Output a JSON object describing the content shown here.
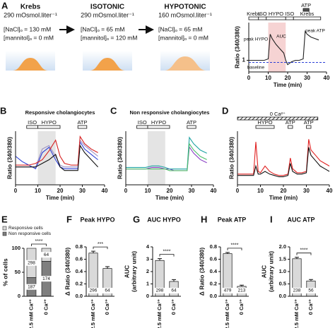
{
  "panel_a": {
    "label": "A",
    "solutions": [
      {
        "name": "Krebs",
        "osmolarity": "290 mOsmol.liter⁻¹",
        "nacl": "[NaCl]ₒ = 130 mM",
        "mannitol": "[mannitol]ₒ = 0 mM"
      },
      {
        "name": "ISOTONIC",
        "osmolarity": "290 mOsmol.liter⁻¹",
        "nacl": "[NaCl]ₒ = 65 mM",
        "mannitol": "[mannitol]ₒ = 120 mM"
      },
      {
        "name": "HYPOTONIC",
        "osmolarity": "160 mOsmol.liter⁻¹",
        "nacl": "[NaCl]ₒ = 65 mM",
        "mannitol": "[mannitol]ₒ = 0 mM"
      }
    ]
  },
  "chart_data": [
    {
      "type": "line",
      "ylabel": "Ratio (340/380)",
      "xlabel": "Time (min)",
      "x": [
        0,
        2,
        4,
        6,
        8,
        10,
        11,
        12,
        14,
        16,
        18,
        19,
        20,
        22,
        24,
        26,
        28,
        29,
        30,
        32,
        34,
        36
      ],
      "series": [
        {
          "color": "#222222",
          "values": [
            1.0,
            1.0,
            1.0,
            1.0,
            1.0,
            1.05,
            1.9,
            1.75,
            1.55,
            1.4,
            1.25,
            1.0,
            0.85,
            0.95,
            1.0,
            1.0,
            1.05,
            2.0,
            1.9,
            1.8,
            1.75,
            1.7
          ]
        }
      ],
      "xlim": [
        0,
        40
      ],
      "xticks": [
        0,
        10,
        20,
        30,
        40
      ],
      "ylim": [
        0.6,
        2.3
      ],
      "yticks": [
        1
      ],
      "shade": [
        10,
        19
      ],
      "periods": [
        {
          "label": "Krebs",
          "start": 0,
          "end": 5
        },
        {
          "label": "ISO",
          "start": 5,
          "end": 9
        },
        {
          "label": "HYPO",
          "start": 9,
          "end": 19
        },
        {
          "label": "ISO",
          "start": 19,
          "end": 23
        },
        {
          "label": "Krebs",
          "start": 23,
          "end": 37
        },
        {
          "label": "ATP",
          "start": 28,
          "end": 31
        }
      ],
      "annotations": [
        "peak HYPO",
        "AUC",
        "peak ATP",
        "baseline"
      ]
    },
    {
      "panel": "B",
      "type": "line",
      "title": "Responsive cholangiocytes",
      "ylabel": "Ratio (340/380)",
      "xlabel": "Time (min)",
      "x": [
        0,
        3,
        6,
        9,
        12,
        15,
        18,
        20,
        22,
        25,
        28,
        29,
        31,
        34,
        37
      ],
      "series": [
        {
          "color": "#2b3fd6",
          "values": [
            1.3,
            1.15,
            1.05,
            0.95,
            1.4,
            1.55,
            1.2,
            1.0,
            0.95,
            0.95,
            0.95,
            1.7,
            1.5,
            1.35,
            1.2
          ]
        },
        {
          "color": "#9a8fc4",
          "values": [
            1.0,
            1.0,
            1.0,
            1.0,
            1.5,
            1.6,
            1.3,
            1.05,
            1.0,
            1.0,
            1.0,
            1.75,
            1.6,
            1.45,
            1.3
          ]
        },
        {
          "color": "#d62020",
          "values": [
            1.05,
            1.05,
            1.05,
            1.1,
            1.2,
            1.45,
            1.75,
            1.3,
            1.1,
            1.05,
            1.05,
            1.85,
            1.65,
            1.5,
            1.4
          ]
        },
        {
          "color": "#111111",
          "values": [
            1.0,
            1.0,
            1.0,
            1.0,
            1.1,
            1.2,
            1.35,
            1.0,
            0.9,
            0.9,
            0.9,
            1.6,
            1.4,
            1.2,
            1.0
          ]
        }
      ],
      "xlim": [
        0,
        40
      ],
      "xticks": [
        0,
        10,
        20,
        30,
        40
      ],
      "ylim": [
        0.5,
        2.0
      ],
      "shade": [
        10,
        18
      ],
      "periods": [
        {
          "label": "ISO",
          "start": 5,
          "end": 10
        },
        {
          "label": "HYPO",
          "start": 10,
          "end": 20
        },
        {
          "label": "ATP",
          "start": 28,
          "end": 32
        }
      ]
    },
    {
      "panel": "C",
      "type": "line",
      "title": "Non responsive cholangiocytes",
      "ylabel": "Ratio (340/380)",
      "xlabel": "Time (min)",
      "x": [
        0,
        3,
        6,
        9,
        12,
        15,
        18,
        20,
        22,
        25,
        28,
        29,
        31,
        34,
        37
      ],
      "series": [
        {
          "color": "#8a3fc4",
          "values": [
            1.0,
            1.0,
            1.0,
            1.0,
            1.05,
            1.05,
            1.0,
            1.0,
            0.95,
            0.95,
            0.95,
            1.7,
            1.5,
            1.3,
            1.2
          ]
        },
        {
          "color": "#1fa3a3",
          "values": [
            1.05,
            1.05,
            1.05,
            1.05,
            1.1,
            1.1,
            1.05,
            1.0,
            1.0,
            1.0,
            1.0,
            2.0,
            1.8,
            1.6,
            1.5
          ]
        },
        {
          "color": "#4fbf6a",
          "values": [
            1.0,
            1.0,
            1.0,
            1.0,
            1.0,
            1.0,
            1.0,
            0.95,
            0.95,
            0.95,
            0.95,
            1.8,
            1.6,
            1.4,
            1.3
          ]
        }
      ],
      "xlim": [
        0,
        40
      ],
      "xticks": [
        0,
        10,
        20,
        30,
        40
      ],
      "ylim": [
        0.5,
        2.2
      ],
      "shade": [
        10,
        18
      ],
      "periods": [
        {
          "label": "ISO",
          "start": 5,
          "end": 10
        },
        {
          "label": "HYPO",
          "start": 10,
          "end": 20
        },
        {
          "label": "ATP",
          "start": 28,
          "end": 32
        }
      ]
    },
    {
      "panel": "D",
      "type": "line",
      "ylabel": "Ratio (340/380)",
      "xlabel": "Time (min)",
      "x": [
        0,
        2,
        4,
        5,
        6,
        7,
        8,
        9,
        10,
        12,
        14,
        16,
        18,
        20,
        22,
        23,
        24,
        26,
        28,
        30,
        31,
        32,
        34,
        36,
        38,
        40
      ],
      "series": [
        {
          "color": "#e02020",
          "values": [
            1.0,
            1.0,
            1.0,
            1.0,
            1.0,
            1.0,
            2.2,
            1.1,
            1.05,
            1.3,
            1.1,
            1.0,
            0.95,
            0.95,
            1.0,
            1.6,
            1.2,
            1.05,
            1.05,
            1.1,
            2.3,
            1.9,
            1.7,
            1.5,
            1.4,
            1.3
          ]
        },
        {
          "color": "#111111",
          "values": [
            0.95,
            0.95,
            0.95,
            0.95,
            0.95,
            0.95,
            1.3,
            1.0,
            1.0,
            1.1,
            1.0,
            0.95,
            0.9,
            0.9,
            0.95,
            1.4,
            1.1,
            1.0,
            1.0,
            1.05,
            2.0,
            1.7,
            1.5,
            1.3,
            1.2,
            1.1
          ]
        }
      ],
      "xlim": [
        0,
        40
      ],
      "xticks": [
        0,
        10,
        20,
        30,
        40
      ],
      "ylim": [
        0.6,
        2.6
      ],
      "periods": [
        {
          "label": "HYPO",
          "start": 8,
          "end": 16
        },
        {
          "label": "ATP",
          "start": 22,
          "end": 24
        },
        {
          "label": "0 Ca²⁺",
          "start": 0,
          "end": 35,
          "hatched": true
        },
        {
          "label": "ATP",
          "start": 30,
          "end": 32
        }
      ]
    },
    {
      "panel": "E",
      "type": "stacked_bar",
      "categories": [
        "2.5 mM Ca²⁺",
        "0 Ca²⁺"
      ],
      "series": [
        {
          "name": "Responsive cells",
          "color": "#d9d9d9",
          "values": [
            61,
            27
          ],
          "n": [
            298,
            64
          ]
        },
        {
          "name": "Non responsive cells",
          "color": "#7f7f7f",
          "values": [
            39,
            73
          ],
          "n": [
            187,
            174
          ]
        }
      ],
      "ylabel": [
        "% of cells"
      ],
      "ylim": [
        0,
        100
      ],
      "yticks": [
        0,
        50,
        100
      ],
      "significance": "****"
    },
    {
      "panel": "F",
      "type": "bar",
      "title": "Peak HYPO",
      "categories": [
        "2.5 mM Ca²⁺",
        "0 Ca²⁺"
      ],
      "values": [
        0.7,
        0.45
      ],
      "errors": [
        0.03,
        0.03
      ],
      "n": [
        296,
        64
      ],
      "color": "#d9d9d9",
      "ylabel": [
        "Δ Ratio (340/380)"
      ],
      "ylim": [
        0,
        0.8
      ],
      "yticks": [
        {
          "value": 0,
          "label": "0.0"
        },
        0.2,
        0.4,
        0.6,
        0.8
      ],
      "significance": "***"
    },
    {
      "panel": "G",
      "type": "bar",
      "title": "AUC HYPO",
      "categories": [
        "2.5 mM Ca²⁺",
        "0 Ca²⁺"
      ],
      "values": [
        2.9,
        1.2
      ],
      "errors": [
        0.15,
        0.15
      ],
      "n": [
        298,
        64
      ],
      "color": "#d9d9d9",
      "ylabel": [
        "AUC",
        "(arbitrary unit)"
      ],
      "ylim": [
        0,
        4
      ],
      "yticks": [
        0,
        1,
        2,
        3,
        4
      ],
      "significance": "****"
    },
    {
      "panel": "H",
      "type": "bar",
      "title": "Peak ATP",
      "categories": [
        "2.5 mM Ca²⁺",
        "0 Ca²⁺"
      ],
      "values": [
        0.69,
        0.16
      ],
      "errors": [
        0.02,
        0.02
      ],
      "n": [
        479,
        213
      ],
      "color": "#d9d9d9",
      "ylabel": [
        "Δ Ratio (340/380)"
      ],
      "ylim": [
        0,
        0.8
      ],
      "yticks": [
        {
          "value": 0,
          "label": "0.0"
        },
        0.2,
        0.4,
        0.6,
        0.8
      ],
      "significance": "****"
    },
    {
      "panel": "I",
      "type": "bar",
      "title": "AUC ATP",
      "categories": [
        "2.5 mM Ca²⁺",
        "0 Ca²⁺"
      ],
      "values": [
        1.52,
        0.62
      ],
      "errors": [
        0.06,
        0.06
      ],
      "n": [
        238,
        56
      ],
      "color": "#d9d9d9",
      "ylabel": [
        "AUC",
        "(arbitrary unit)"
      ],
      "ylim": [
        0,
        2
      ],
      "yticks": [
        {
          "value": 0,
          "label": "0.0"
        },
        0.5,
        {
          "value": 1,
          "label": "1.0"
        },
        1.5,
        {
          "value": 2,
          "label": "2.0"
        }
      ],
      "significance": "****"
    }
  ]
}
